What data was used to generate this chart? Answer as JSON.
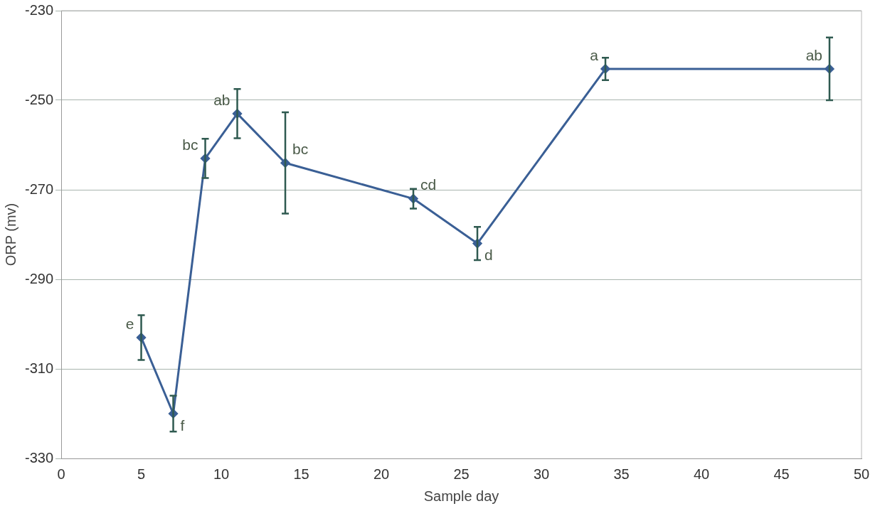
{
  "chart_data": {
    "type": "line",
    "xlabel": "Sample day",
    "ylabel": "ORP (mv)",
    "x": [
      5,
      7,
      9,
      11,
      14,
      22,
      26,
      34,
      48
    ],
    "series": [
      {
        "color": "#3a5f95",
        "values": [
          -303,
          -320,
          -263,
          -253,
          -264,
          -272,
          -282,
          -243,
          -243
        ],
        "errors": [
          5,
          4,
          4.4,
          5.5,
          11.3,
          2.2,
          3.7,
          2.5,
          7
        ]
      }
    ],
    "xlim": [
      0,
      50
    ],
    "xticks": [
      0,
      5,
      10,
      15,
      20,
      25,
      30,
      35,
      40,
      45,
      50
    ],
    "ylim": [
      -330,
      -230
    ],
    "yticks": [
      -330,
      -310,
      -290,
      -270,
      -250,
      -230
    ],
    "grid": "y",
    "legend": false,
    "marker": "diamond",
    "line_style": "solid",
    "annotations": [
      {
        "text": "e",
        "x": 5,
        "y": -303
      },
      {
        "text": "f",
        "x": 7,
        "y": -320
      },
      {
        "text": "bc",
        "x": 9,
        "y": -263
      },
      {
        "text": "ab",
        "x": 11,
        "y": -253
      },
      {
        "text": "bc",
        "x": 14,
        "y": -264
      },
      {
        "text": "cd",
        "x": 22,
        "y": -272
      },
      {
        "text": "d",
        "x": 26,
        "y": -282
      },
      {
        "text": "a",
        "x": 34,
        "y": -243
      },
      {
        "text": "ab",
        "x": 48,
        "y": -243
      }
    ]
  }
}
